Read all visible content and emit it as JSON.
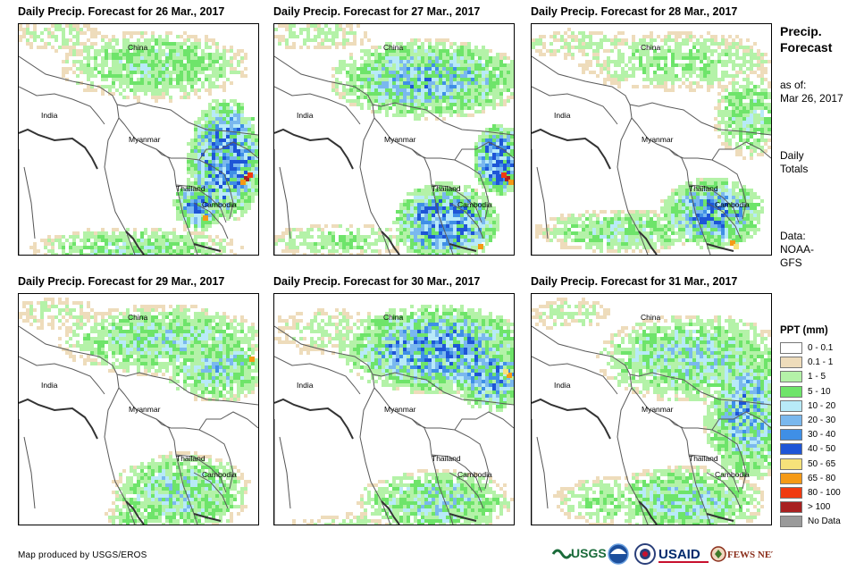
{
  "panels": [
    {
      "title": "Daily Precip. Forecast for 26 Mar., 2017",
      "labels": {
        "china": "China",
        "india": "India",
        "myanmar": "Myanmar",
        "thailand": "Thailand",
        "cambodia": "Cambodia"
      }
    },
    {
      "title": "Daily Precip. Forecast for 27 Mar., 2017",
      "labels": {
        "china": "China",
        "india": "India",
        "myanmar": "Myanmar",
        "thailand": "Thailand",
        "cambodia": "Cambodia"
      }
    },
    {
      "title": "Daily Precip. Forecast for 28 Mar., 2017",
      "labels": {
        "china": "China",
        "india": "India",
        "myanmar": "Myanmar",
        "thailand": "Thailand",
        "cambodia": "Cambodia"
      }
    },
    {
      "title": "Daily Precip. Forecast for 29 Mar., 2017",
      "labels": {
        "china": "China",
        "india": "India",
        "myanmar": "Myanmar",
        "thailand": "Thailand",
        "cambodia": "Cambodia"
      }
    },
    {
      "title": "Daily Precip. Forecast for 30 Mar., 2017",
      "labels": {
        "china": "China",
        "india": "India",
        "myanmar": "Myanmar",
        "thailand": "Thailand",
        "cambodia": "Cambodia"
      }
    },
    {
      "title": "Daily Precip. Forecast for 31 Mar., 2017",
      "labels": {
        "china": "China",
        "india": "India",
        "myanmar": "Myanmar",
        "thailand": "Thailand",
        "cambodia": "Cambodia"
      }
    }
  ],
  "sidebar": {
    "title_line1": "Precip.",
    "title_line2": "Forecast",
    "asof_line1": "as of:",
    "asof_line2": "Mar 26, 2017",
    "daily_line1": "Daily",
    "daily_line2": "Totals",
    "data_line1": "Data:",
    "data_line2": "NOAA-",
    "data_line3": "GFS"
  },
  "legend": {
    "title": "PPT (mm)",
    "items": [
      {
        "label": "0 - 0.1",
        "color": "#ffffff"
      },
      {
        "label": "0.1 - 1",
        "color": "#eedcbb"
      },
      {
        "label": "1 - 5",
        "color": "#b4f2a8"
      },
      {
        "label": "5 - 10",
        "color": "#6ee46a"
      },
      {
        "label": "10 - 20",
        "color": "#b8eaf8"
      },
      {
        "label": "20 - 30",
        "color": "#7ab8ee"
      },
      {
        "label": "30 - 40",
        "color": "#3f8fe6"
      },
      {
        "label": "40 - 50",
        "color": "#1e55d6"
      },
      {
        "label": "50 - 65",
        "color": "#f6e27a"
      },
      {
        "label": "65 - 80",
        "color": "#f59a16"
      },
      {
        "label": "80 - 100",
        "color": "#f03a10"
      },
      {
        "label": "> 100",
        "color": "#a82020"
      },
      {
        "label": "No Data",
        "color": "#9a9a9a"
      }
    ]
  },
  "footer": {
    "credit": "Map produced by USGS/EROS",
    "logos": [
      "USGS",
      "NOAA",
      "USAID",
      "FEWS NET"
    ]
  },
  "colors": {
    "border": "#5a5a5a",
    "background": "#ffffff"
  }
}
